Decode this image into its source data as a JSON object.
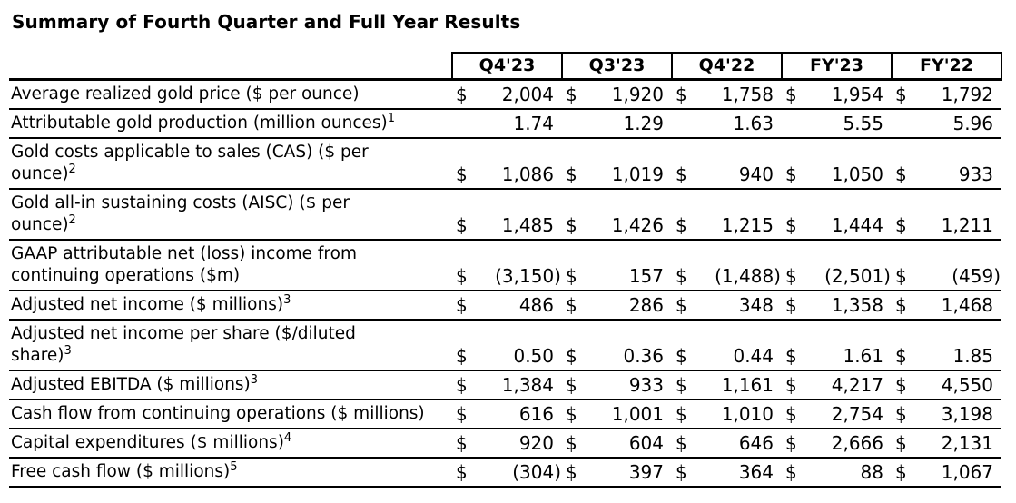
{
  "title": "Summary of Fourth Quarter and Full Year Results",
  "colors": {
    "text": "#000000",
    "background": "#ffffff",
    "border": "#000000"
  },
  "table": {
    "currency_symbol": "$",
    "columns": [
      "Q4'23",
      "Q3'23",
      "Q4'22",
      "FY'23",
      "FY'22"
    ],
    "rows": [
      {
        "label_lines": [
          "Average realized gold price ($ per ounce)"
        ],
        "sup": "",
        "dollar": true,
        "values": [
          "2,004",
          "1,920",
          "1,758",
          "1,954",
          "1,792"
        ]
      },
      {
        "label_lines": [
          "Attributable gold production (million ounces)"
        ],
        "sup": "1",
        "dollar": false,
        "values": [
          "1.74",
          "1.29",
          "1.63",
          "5.55",
          "5.96"
        ]
      },
      {
        "label_lines": [
          "Gold costs applicable to sales (CAS) ($ per",
          "ounce)"
        ],
        "sup": "2",
        "dollar": true,
        "values": [
          "1,086",
          "1,019",
          "940",
          "1,050",
          "933"
        ]
      },
      {
        "label_lines": [
          "Gold all-in sustaining costs (AISC) ($ per",
          "ounce)"
        ],
        "sup": "2",
        "dollar": true,
        "values": [
          "1,485",
          "1,426",
          "1,215",
          "1,444",
          "1,211"
        ]
      },
      {
        "label_lines": [
          "GAAP attributable net (loss) income from",
          "continuing operations ($m)"
        ],
        "sup": "",
        "dollar": true,
        "values": [
          "(3,150)",
          "157",
          "(1,488)",
          "(2,501)",
          "(459)"
        ]
      },
      {
        "label_lines": [
          "Adjusted net income ($ millions)"
        ],
        "sup": "3",
        "dollar": true,
        "values": [
          "486",
          "286",
          "348",
          "1,358",
          "1,468"
        ]
      },
      {
        "label_lines": [
          "Adjusted net income per share ($/diluted",
          "share)"
        ],
        "sup": "3",
        "dollar": true,
        "values": [
          "0.50",
          "0.36",
          "0.44",
          "1.61",
          "1.85"
        ]
      },
      {
        "label_lines": [
          "Adjusted EBITDA ($ millions)"
        ],
        "sup": "3",
        "dollar": true,
        "values": [
          "1,384",
          "933",
          "1,161",
          "4,217",
          "4,550"
        ]
      },
      {
        "label_lines": [
          "Cash flow from continuing operations ($ millions)"
        ],
        "sup": "",
        "dollar": true,
        "values": [
          "616",
          "1,001",
          "1,010",
          "2,754",
          "3,198"
        ]
      },
      {
        "label_lines": [
          "Capital expenditures ($ millions)"
        ],
        "sup": "4",
        "dollar": true,
        "values": [
          "920",
          "604",
          "646",
          "2,666",
          "2,131"
        ]
      },
      {
        "label_lines": [
          "Free cash flow ($ millions)"
        ],
        "sup": "5",
        "dollar": true,
        "values": [
          "(304)",
          "397",
          "364",
          "88",
          "1,067"
        ]
      }
    ]
  }
}
